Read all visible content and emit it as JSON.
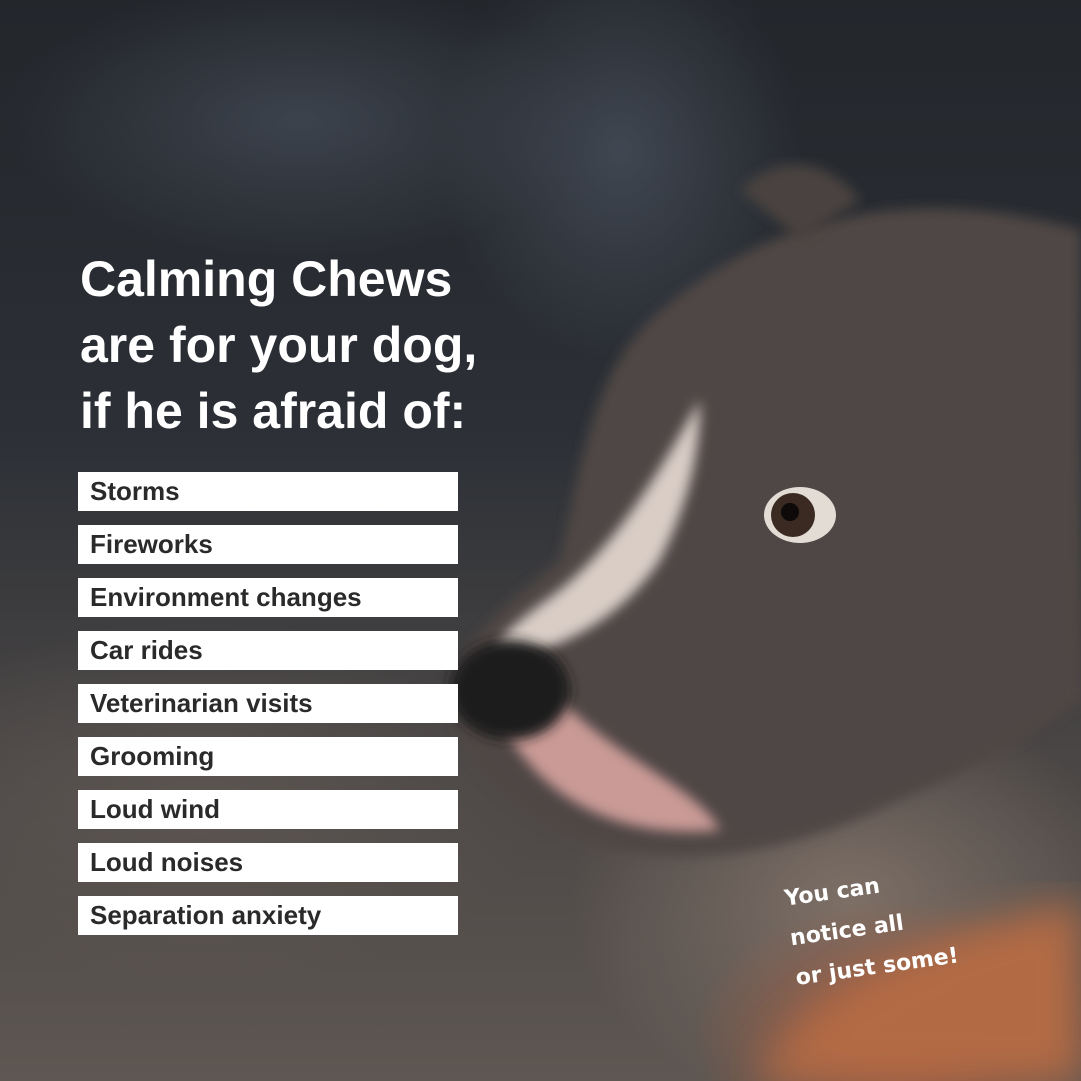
{
  "headline": [
    "Calming Chews",
    "are for your dog,",
    "if he is afraid of:"
  ],
  "fears": [
    "Storms",
    "Fireworks",
    "Environment changes",
    "Car rides",
    "Veterinarian visits",
    "Grooming",
    "Loud wind",
    "Loud noises",
    "Separation anxiety"
  ],
  "note": [
    "You can",
    "notice all",
    "or just some!"
  ],
  "colors": {
    "text": "#ffffff",
    "list_box": "#ffffff",
    "list_text": "#2a2a2a"
  }
}
